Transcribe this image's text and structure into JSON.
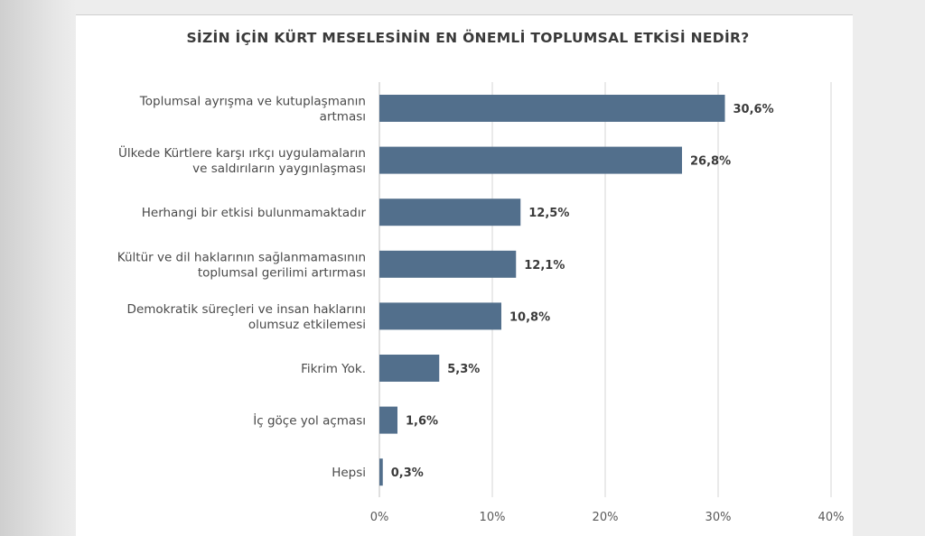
{
  "colors": {
    "bar": "#526f8c",
    "grid": "#d6d6d6",
    "axis": "#bfbfbf"
  },
  "chart_data": {
    "type": "bar",
    "orientation": "horizontal",
    "title": "SİZİN İÇİN KÜRT MESELESİNİN EN ÖNEMLİ TOPLUMSAL ETKİSİ NEDİR?",
    "categories": [
      [
        "Toplumsal ayrışma ve kutuplaşmanın",
        "artması"
      ],
      [
        "Ülkede Kürtlere karşı ırkçı uygulamaların",
        "ve saldırıların yaygınlaşması"
      ],
      [
        "Herhangi bir etkisi bulunmamaktadır"
      ],
      [
        "Kültür ve dil haklarının sağlanmamasının",
        "toplumsal gerilimi artırması"
      ],
      [
        "Demokratik süreçleri ve insan haklarını",
        "olumsuz etkilemesi"
      ],
      [
        "Fikrim Yok."
      ],
      [
        "İç göçe yol açması"
      ],
      [
        "Hepsi"
      ]
    ],
    "values": [
      30.6,
      26.8,
      12.5,
      12.1,
      10.8,
      5.3,
      1.6,
      0.3
    ],
    "value_labels": [
      "30,6%",
      "26,8%",
      "12,5%",
      "12,1%",
      "10,8%",
      "5,3%",
      "1,6%",
      "0,3%"
    ],
    "xlim": [
      0,
      40
    ],
    "xticks": [
      0,
      10,
      20,
      30,
      40
    ],
    "xtick_labels": [
      "0%",
      "10%",
      "20%",
      "30%",
      "40%"
    ],
    "grid": true,
    "legend": "none"
  }
}
